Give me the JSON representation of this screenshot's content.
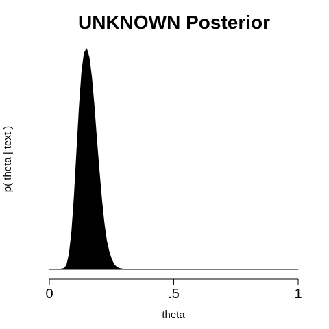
{
  "chart_data": {
    "type": "area",
    "title": "UNKNOWN Posterior",
    "xlabel": "theta",
    "ylabel": "p( theta | text )",
    "xlim": [
      0,
      1
    ],
    "ylim": [
      0,
      1
    ],
    "x_ticks": [
      {
        "value": 0,
        "label": "0"
      },
      {
        "value": 0.5,
        "label": ".5"
      },
      {
        "value": 1,
        "label": "1"
      }
    ],
    "grid": false,
    "fill_color": "#000000",
    "series": [
      {
        "values_x": [
          0.0,
          0.02,
          0.04,
          0.06,
          0.07,
          0.08,
          0.09,
          0.1,
          0.11,
          0.12,
          0.13,
          0.14,
          0.15,
          0.16,
          0.17,
          0.18,
          0.19,
          0.2,
          0.21,
          0.22,
          0.23,
          0.24,
          0.25,
          0.26,
          0.27,
          0.28,
          0.3,
          0.32,
          0.35,
          0.4,
          0.5,
          0.6,
          0.7,
          0.8,
          0.9,
          1.0
        ],
        "values_y": [
          0.0,
          0.0,
          0.0,
          0.005,
          0.02,
          0.07,
          0.17,
          0.33,
          0.53,
          0.73,
          0.89,
          0.98,
          1.0,
          0.96,
          0.87,
          0.74,
          0.59,
          0.45,
          0.32,
          0.21,
          0.13,
          0.08,
          0.045,
          0.023,
          0.011,
          0.005,
          0.001,
          0.0,
          0.0,
          0.0,
          0.0,
          0.0,
          0.0,
          0.0,
          0.0,
          0.0
        ]
      }
    ]
  }
}
